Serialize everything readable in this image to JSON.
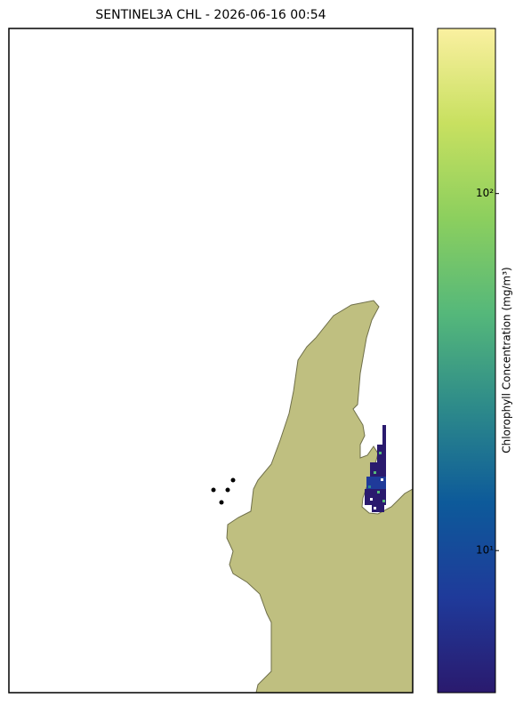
{
  "chart_data": {
    "type": "map",
    "title": "SENTINEL3A CHL - 2026-06-16 00:54",
    "land_color": "#bfbf80",
    "colorbar": {
      "label": "Chlorophyll Concentration (mg/m³)",
      "scale": "log",
      "clim": [
        4,
        290
      ],
      "ticks": [
        {
          "value": 10,
          "label": "10¹"
        },
        {
          "value": 100,
          "label": "10²"
        }
      ],
      "colormap": [
        "#2a1a6e",
        "#1f3a9a",
        "#0d5a9a",
        "#2d8a8a",
        "#55b87a",
        "#8ccf5e",
        "#c8e060",
        "#faf0a0"
      ]
    }
  }
}
